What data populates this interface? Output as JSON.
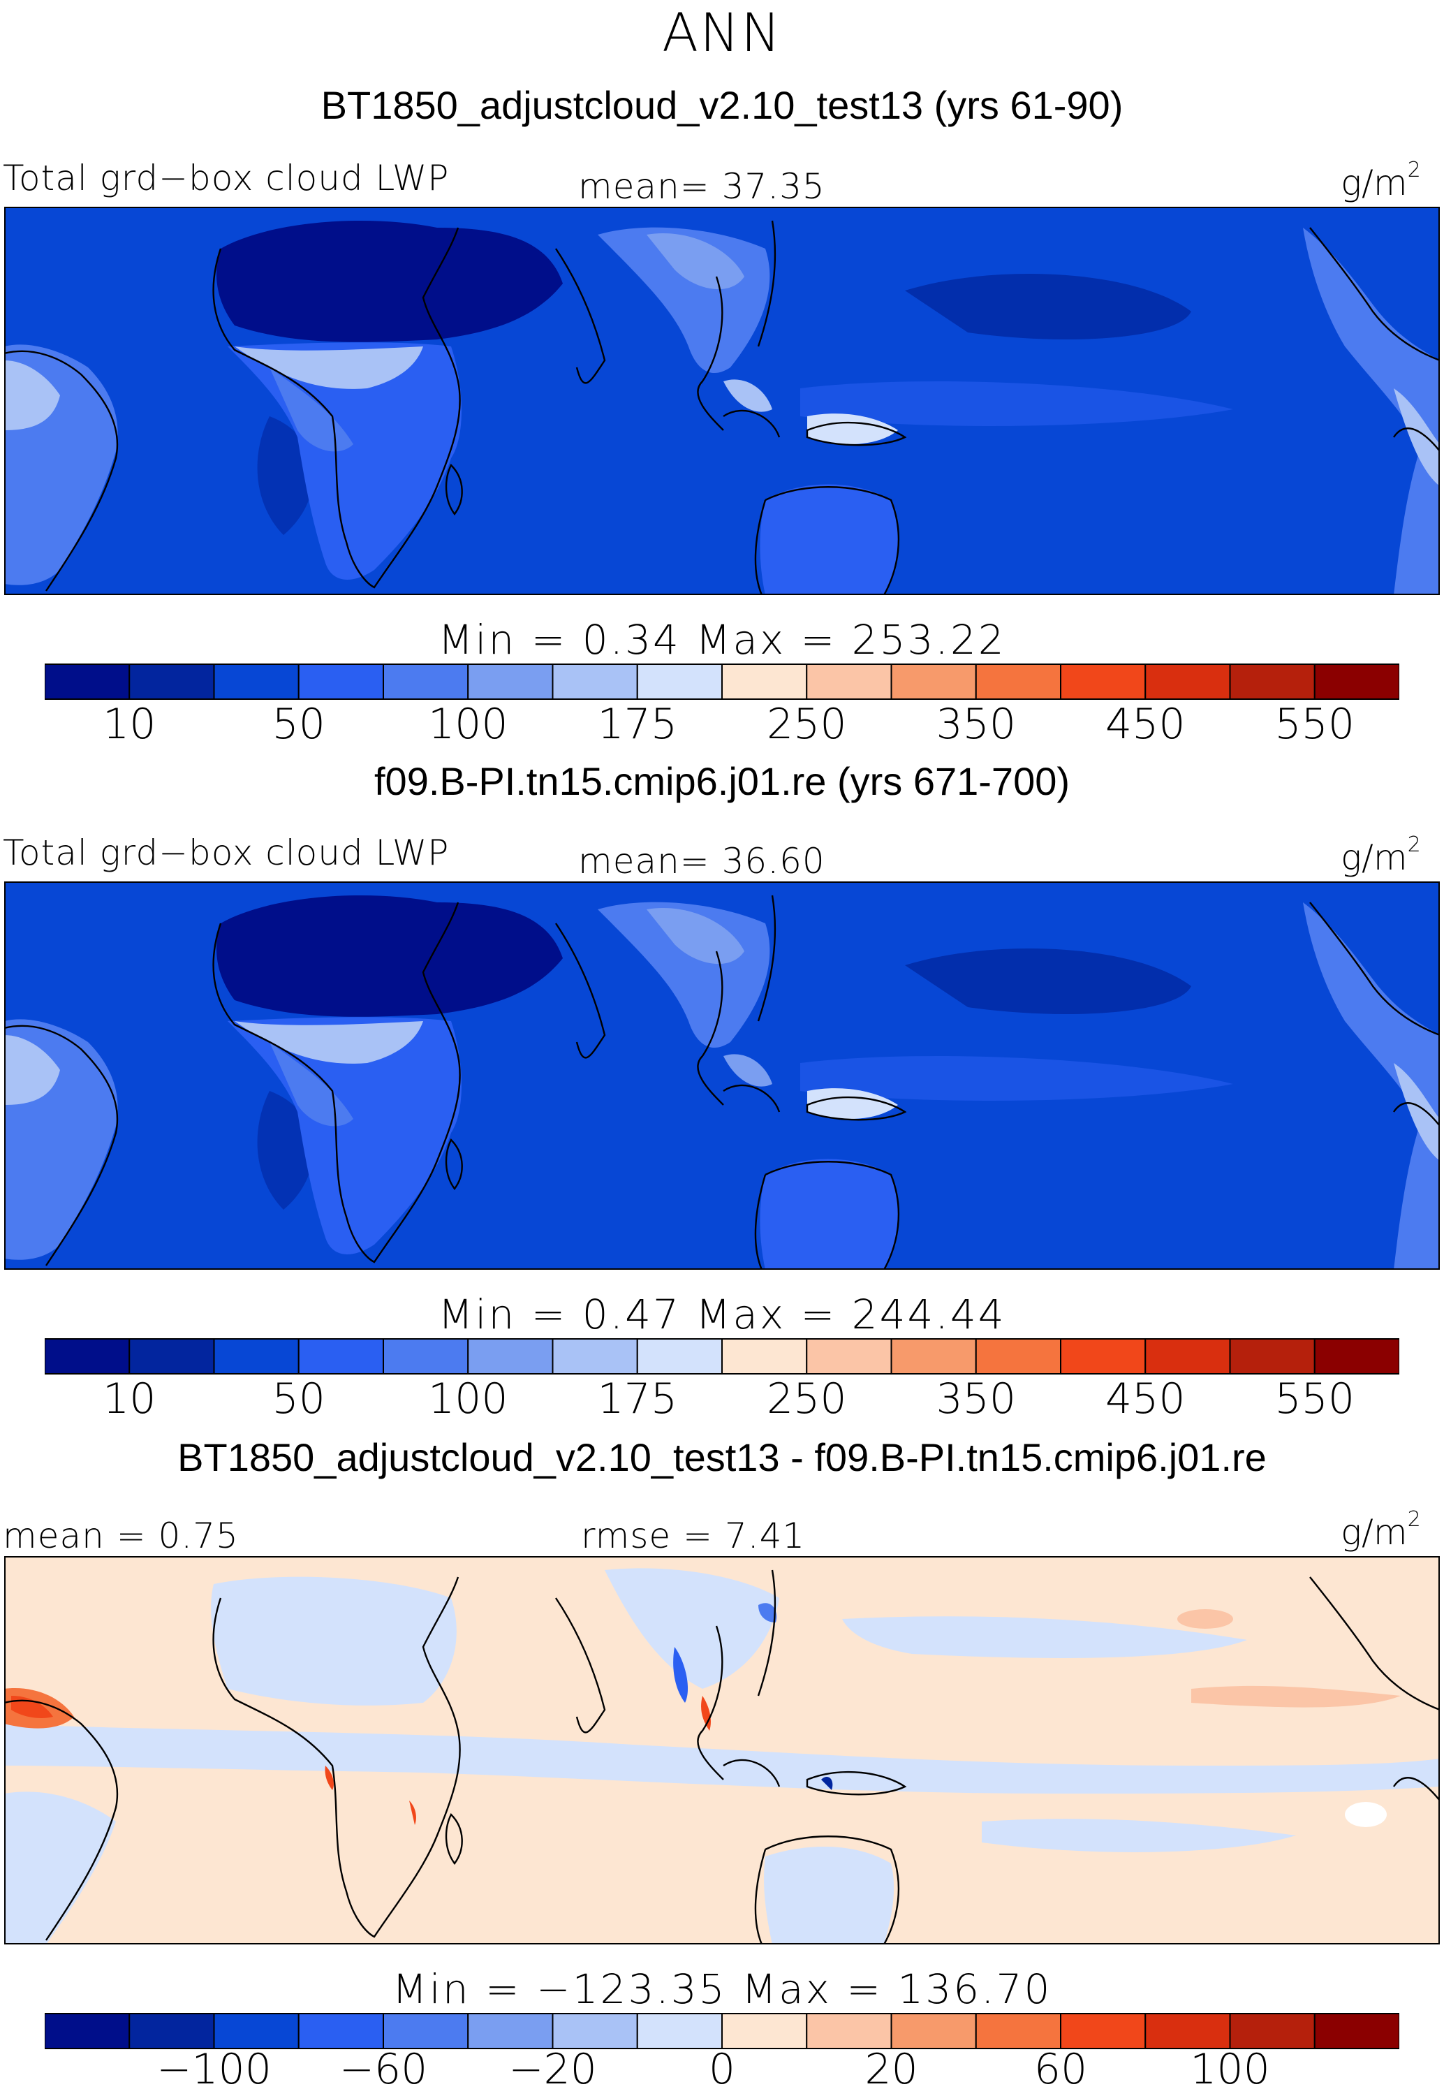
{
  "title": "ANN",
  "panels": [
    {
      "case": "BT1850_adjustcloud_v2.10_test13 (yrs 61-90)",
      "left_label": "Total grd−box cloud LWP",
      "center_label": "mean=   37.35",
      "unit": "g/m",
      "unit_sup": "2",
      "minmax": "Min  =     0.34  Max  = 253.22",
      "colorbar": {
        "colors": [
          "#000e8a",
          "#02259e",
          "#0747d5",
          "#2a5ff2",
          "#4c7bf0",
          "#7a9ef1",
          "#a9c2f6",
          "#d3e2fc",
          "#fde6d2",
          "#fbc5a7",
          "#f79a6b",
          "#f5743e",
          "#f1471a",
          "#d92f0f",
          "#b5200c",
          "#8b0000"
        ],
        "ticks": [
          "10",
          "50",
          "100",
          "175",
          "250",
          "350",
          "450",
          "550"
        ]
      }
    },
    {
      "case": "f09.B-PI.tn15.cmip6.j01.re (yrs 671-700)",
      "left_label": "Total grd−box cloud LWP",
      "center_label": "mean=   36.60",
      "unit": "g/m",
      "unit_sup": "2",
      "minmax": "Min  =     0.47  Max  = 244.44",
      "colorbar": {
        "colors": [
          "#000e8a",
          "#02259e",
          "#0747d5",
          "#2a5ff2",
          "#4c7bf0",
          "#7a9ef1",
          "#a9c2f6",
          "#d3e2fc",
          "#fde6d2",
          "#fbc5a7",
          "#f79a6b",
          "#f5743e",
          "#f1471a",
          "#d92f0f",
          "#b5200c",
          "#8b0000"
        ],
        "ticks": [
          "10",
          "50",
          "100",
          "175",
          "250",
          "350",
          "450",
          "550"
        ]
      }
    },
    {
      "case": "BT1850_adjustcloud_v2.10_test13 - f09.B-PI.tn15.cmip6.j01.re",
      "left_label": "mean  =     0.75",
      "center_label": "rmse  =     7.41",
      "unit": "g/m",
      "unit_sup": "2",
      "minmax": "Min  = −123.35  Max  =  136.70",
      "colorbar": {
        "colors": [
          "#000e8a",
          "#02259e",
          "#0747d5",
          "#2a5ff2",
          "#4c7bf0",
          "#7a9ef1",
          "#a9c2f6",
          "#d3e2fc",
          "#fde6d2",
          "#fbc5a7",
          "#f79a6b",
          "#f5743e",
          "#f1471a",
          "#d92f0f",
          "#b5200c",
          "#8b0000"
        ],
        "ticks": [
          "−100",
          "−60",
          "−20",
          "0",
          "20",
          "60",
          "100"
        ]
      }
    }
  ]
}
